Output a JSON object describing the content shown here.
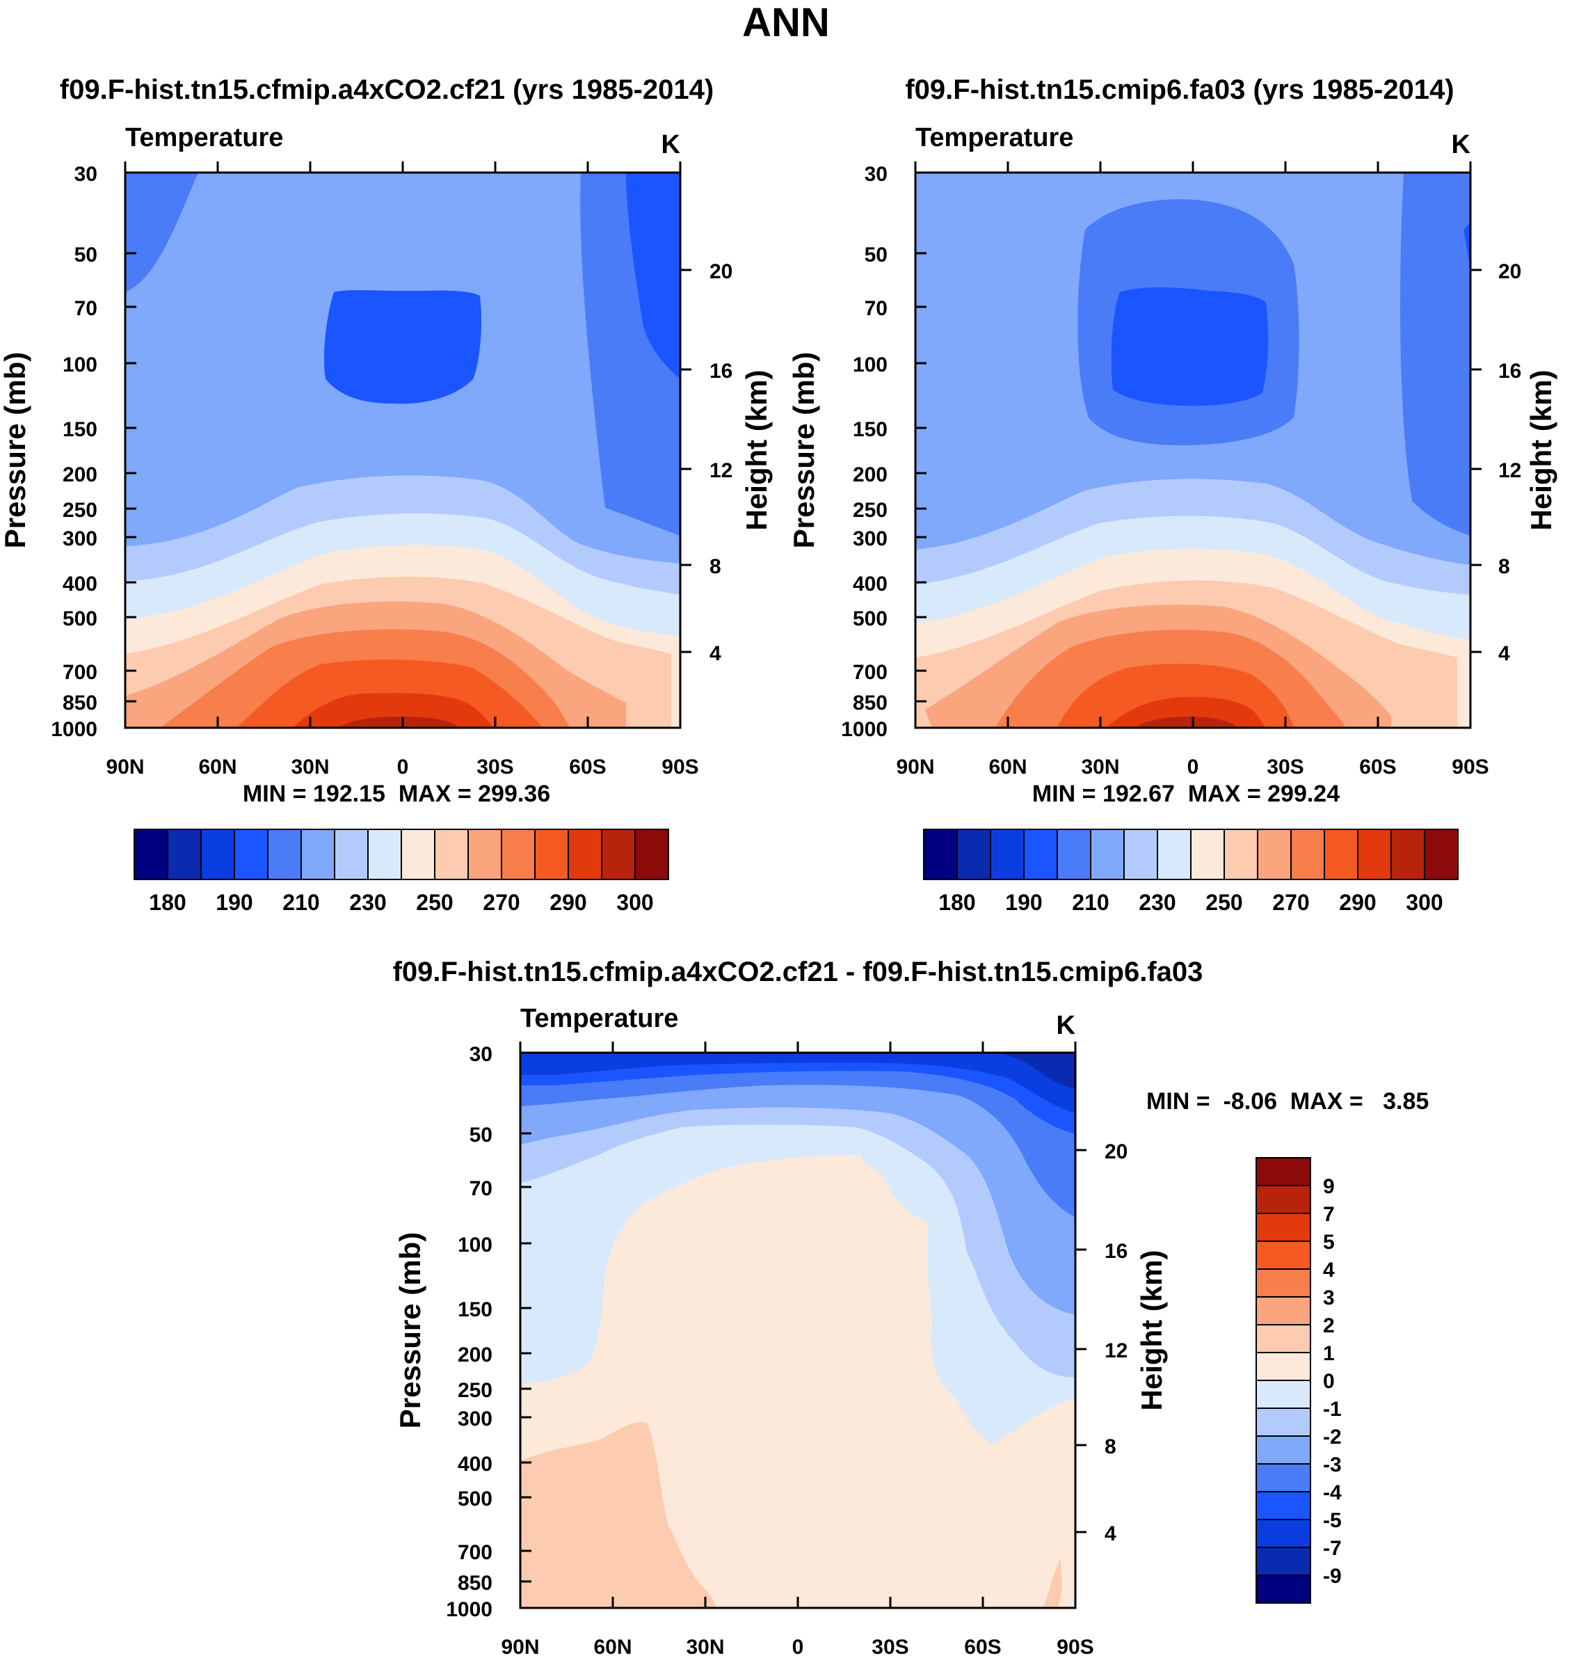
{
  "title": "ANN",
  "colors": {
    "abs": [
      "#000080",
      "#0a2ab0",
      "#0b3ee0",
      "#1a55ff",
      "#4a7cf7",
      "#80a8fb",
      "#b3cbfc",
      "#d9e9fc",
      "#fde9d9",
      "#fccbb0",
      "#faa57e",
      "#f87e4c",
      "#f45a22",
      "#e23a0c",
      "#b8230c",
      "#8c0a0a"
    ],
    "diff": [
      "#000080",
      "#0a2ab0",
      "#0b3ee0",
      "#1a55ff",
      "#4a7cf7",
      "#80a8fb",
      "#b3cbfc",
      "#d9e9fc",
      "#fde9d9",
      "#fccbb0",
      "#faa57e",
      "#f87e4c",
      "#f45a22",
      "#e23a0c",
      "#b8230c",
      "#8c0a0a"
    ]
  },
  "chart_data": [
    {
      "type": "contour",
      "title": "f09.F-hist.tn15.cfmip.a4xCO2.cf21 (yrs 1985-2014)",
      "variable": "Temperature",
      "units": "K",
      "ylabel": "Pressure (mb)",
      "ylabel_right": "Height (km)",
      "x_ticks": [
        "90N",
        "60N",
        "30N",
        "0",
        "30S",
        "60S",
        "90S"
      ],
      "latitudes": [
        90,
        60,
        30,
        0,
        -30,
        -60,
        -90
      ],
      "p_ticks": [
        30,
        50,
        70,
        100,
        150,
        200,
        250,
        300,
        400,
        500,
        700,
        850,
        1000
      ],
      "height_ticks": [
        20,
        16,
        12,
        8,
        4
      ],
      "xlim": [
        90,
        -90
      ],
      "ylim": [
        1000,
        30
      ],
      "stats": "MIN = 192.15  MAX = 299.36",
      "colorbar": {
        "orientation": "horizontal",
        "tick_labels": [
          "180",
          "190",
          "210",
          "230",
          "250",
          "270",
          "290",
          "300"
        ]
      }
    },
    {
      "type": "contour",
      "title": "f09.F-hist.tn15.cmip6.fa03 (yrs 1985-2014)",
      "variable": "Temperature",
      "units": "K",
      "ylabel": "Pressure (mb)",
      "ylabel_right": "Height (km)",
      "x_ticks": [
        "90N",
        "60N",
        "30N",
        "0",
        "30S",
        "60S",
        "90S"
      ],
      "latitudes": [
        90,
        60,
        30,
        0,
        -30,
        -60,
        -90
      ],
      "p_ticks": [
        30,
        50,
        70,
        100,
        150,
        200,
        250,
        300,
        400,
        500,
        700,
        850,
        1000
      ],
      "height_ticks": [
        20,
        16,
        12,
        8,
        4
      ],
      "xlim": [
        90,
        -90
      ],
      "ylim": [
        1000,
        30
      ],
      "stats": "MIN = 192.67  MAX = 299.24",
      "colorbar": {
        "orientation": "horizontal",
        "tick_labels": [
          "180",
          "190",
          "210",
          "230",
          "250",
          "270",
          "290",
          "300"
        ]
      }
    },
    {
      "type": "contour",
      "title": "f09.F-hist.tn15.cfmip.a4xCO2.cf21 - f09.F-hist.tn15.cmip6.fa03",
      "variable": "Temperature",
      "units": "K",
      "ylabel": "Pressure (mb)",
      "ylabel_right": "Height (km)",
      "x_ticks": [
        "90N",
        "60N",
        "30N",
        "0",
        "30S",
        "60S",
        "90S"
      ],
      "latitudes": [
        90,
        60,
        30,
        0,
        -30,
        -60,
        -90
      ],
      "p_ticks": [
        30,
        50,
        70,
        100,
        150,
        200,
        250,
        300,
        400,
        500,
        700,
        850,
        1000
      ],
      "height_ticks": [
        20,
        16,
        12,
        8,
        4
      ],
      "xlim": [
        90,
        -90
      ],
      "ylim": [
        1000,
        30
      ],
      "stats": "MIN =  -8.06  MAX =   3.85",
      "colorbar": {
        "orientation": "vertical",
        "tick_labels": [
          "9",
          "7",
          "5",
          "4",
          "3",
          "2",
          "1",
          "0",
          "-1",
          "-2",
          "-3",
          "-4",
          "-5",
          "-7",
          "-9"
        ]
      }
    }
  ]
}
